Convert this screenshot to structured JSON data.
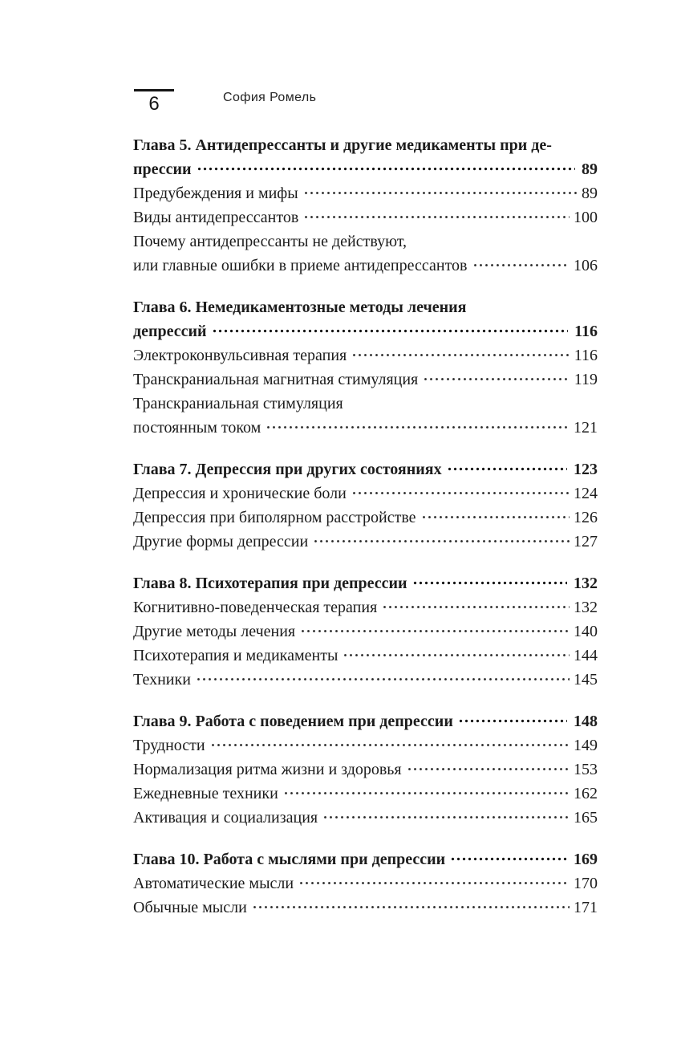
{
  "page": {
    "number": "6",
    "running_title": "София Ромель"
  },
  "colors": {
    "text": "#1c1c1c",
    "background": "#ffffff"
  },
  "toc": {
    "sections": [
      {
        "heading": {
          "lines": [
            "Глава 5. Антидепрессанты и другие медикаменты при де-",
            "прессии"
          ],
          "page": "89"
        },
        "entries": [
          {
            "lines": [
              "Предубеждения и мифы"
            ],
            "page": "89"
          },
          {
            "lines": [
              "Виды антидепрессантов"
            ],
            "page": "100"
          },
          {
            "lines": [
              "Почему антидепрессанты не действуют,",
              "или главные ошибки в приеме антидепрессантов"
            ],
            "page": "106"
          }
        ]
      },
      {
        "heading": {
          "lines": [
            "Глава 6. Немедикаментозные методы лечения",
            "депрессий"
          ],
          "page": "116"
        },
        "entries": [
          {
            "lines": [
              "Электроконвульсивная терапия"
            ],
            "page": "116"
          },
          {
            "lines": [
              "Транскраниальная магнитная стимуляция"
            ],
            "page": "119"
          },
          {
            "lines": [
              "Транскраниальная стимуляция",
              "постоянным током"
            ],
            "page": "121"
          }
        ]
      },
      {
        "heading": {
          "lines": [
            "Глава 7. Депрессия при других состояниях"
          ],
          "page": "123"
        },
        "entries": [
          {
            "lines": [
              "Депрессия и хронические боли"
            ],
            "page": "124"
          },
          {
            "lines": [
              "Депрессия при биполярном расстройстве"
            ],
            "page": "126"
          },
          {
            "lines": [
              "Другие формы депрессии"
            ],
            "page": "127"
          }
        ]
      },
      {
        "heading": {
          "lines": [
            "Глава 8. Психотерапия при депрессии"
          ],
          "page": "132"
        },
        "entries": [
          {
            "lines": [
              "Когнитивно-поведенческая терапия"
            ],
            "page": "132"
          },
          {
            "lines": [
              "Другие методы лечения"
            ],
            "page": "140"
          },
          {
            "lines": [
              "Психотерапия и медикаменты"
            ],
            "page": "144"
          },
          {
            "lines": [
              "Техники"
            ],
            "page": "145"
          }
        ]
      },
      {
        "heading": {
          "lines": [
            "Глава 9. Работа с поведением при депрессии"
          ],
          "page": "148"
        },
        "entries": [
          {
            "lines": [
              "Трудности"
            ],
            "page": "149"
          },
          {
            "lines": [
              "Нормализация ритма жизни и здоровья"
            ],
            "page": "153"
          },
          {
            "lines": [
              "Ежедневные техники"
            ],
            "page": "162"
          },
          {
            "lines": [
              "Активация и социализация"
            ],
            "page": "165"
          }
        ]
      },
      {
        "heading": {
          "lines": [
            "Глава 10. Работа с мыслями при депрессии"
          ],
          "page": "169"
        },
        "entries": [
          {
            "lines": [
              "Автоматические мысли"
            ],
            "page": "170"
          },
          {
            "lines": [
              "Обычные мысли"
            ],
            "page": "171"
          }
        ]
      }
    ]
  }
}
